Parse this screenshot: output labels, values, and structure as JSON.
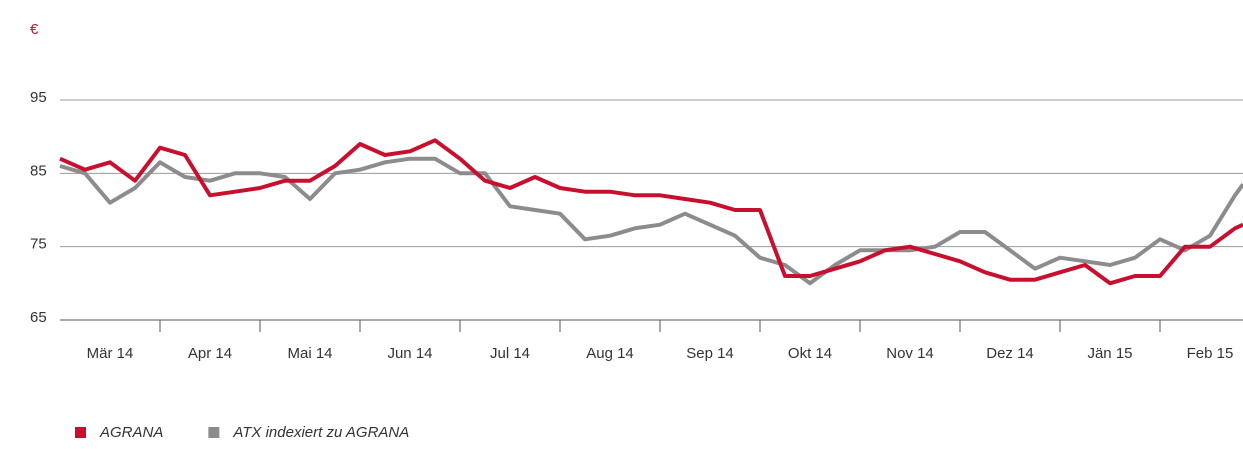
{
  "chart_data": {
    "type": "line",
    "y_label": "€",
    "x": [
      0,
      0.25,
      0.5,
      0.75,
      1,
      1.25,
      1.5,
      1.75,
      2,
      2.25,
      2.5,
      2.75,
      3,
      3.25,
      3.5,
      3.75,
      4,
      4.25,
      4.5,
      4.75,
      5,
      5.25,
      5.5,
      5.75,
      6,
      6.25,
      6.5,
      6.75,
      7,
      7.25,
      7.5,
      7.75,
      8,
      8.25,
      8.5,
      8.75,
      9,
      9.25,
      9.5,
      9.75,
      10,
      10.25,
      10.5,
      10.75,
      11,
      11.25,
      11.5,
      11.75,
      11.83
    ],
    "xlim": [
      0,
      11.83
    ],
    "xticks": [
      {
        "value": 0.5,
        "label": "Mär 14"
      },
      {
        "value": 1.5,
        "label": "Apr 14"
      },
      {
        "value": 2.5,
        "label": "Mai 14"
      },
      {
        "value": 3.5,
        "label": "Jun 14"
      },
      {
        "value": 4.5,
        "label": "Jul 14"
      },
      {
        "value": 5.5,
        "label": "Aug 14"
      },
      {
        "value": 6.5,
        "label": "Sep 14"
      },
      {
        "value": 7.5,
        "label": "Okt 14"
      },
      {
        "value": 8.5,
        "label": "Nov 14"
      },
      {
        "value": 9.5,
        "label": "Dez 14"
      },
      {
        "value": 10.5,
        "label": "Jän 15"
      },
      {
        "value": 11.5,
        "label": "Feb 15"
      }
    ],
    "ylim": [
      62,
      102
    ],
    "yticks": [
      65,
      75,
      85,
      95
    ],
    "grid": true,
    "series": [
      {
        "name": "AGRANA",
        "color": "#c8102e",
        "values": [
          87,
          85.5,
          86.5,
          84,
          88.5,
          87.5,
          82,
          82.5,
          83,
          84,
          84,
          86,
          89,
          87.5,
          88,
          89.5,
          87,
          84,
          83,
          84.5,
          83,
          82.5,
          82.5,
          82,
          82,
          81.5,
          81,
          80,
          80,
          71,
          71,
          72,
          73,
          74.5,
          75,
          74,
          73,
          71.5,
          70.5,
          70.5,
          71.5,
          72.5,
          70,
          71,
          71,
          75,
          75,
          77.5,
          78
        ]
      },
      {
        "name": "ATX indexiert zu AGRANA",
        "color": "#8c8c8c",
        "values": [
          86,
          85,
          81,
          83,
          86.5,
          84.5,
          84,
          85,
          85,
          84.5,
          81.5,
          85,
          85.5,
          86.5,
          87,
          87,
          85,
          85,
          80.5,
          80,
          79.5,
          76,
          76.5,
          77.5,
          78,
          79.5,
          78,
          76.5,
          73.5,
          72.5,
          70,
          72.5,
          74.5,
          74.5,
          74.5,
          75,
          77,
          77,
          74.5,
          72,
          73.5,
          73,
          72.5,
          73.5,
          76,
          74.5,
          76.5,
          82,
          83.5
        ]
      }
    ]
  }
}
